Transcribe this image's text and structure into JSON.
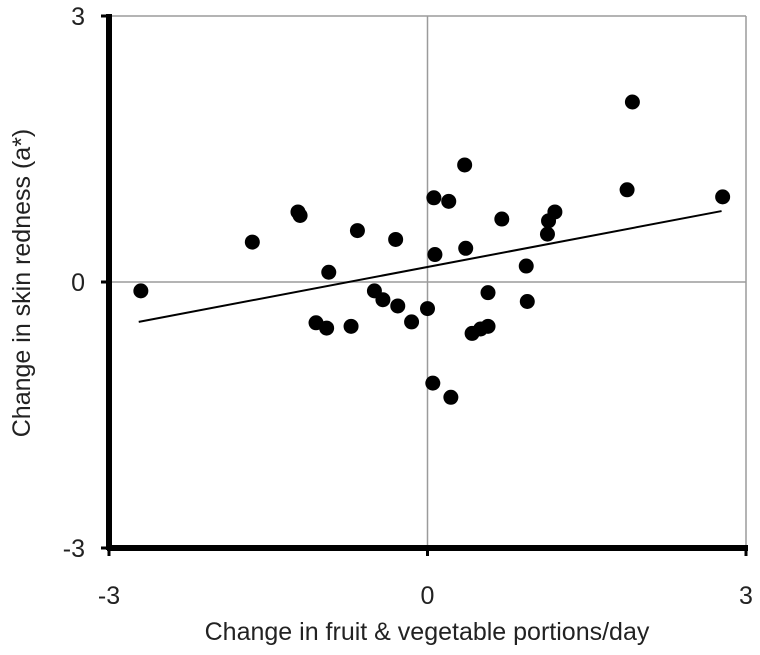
{
  "chart_data": {
    "type": "scatter",
    "xlabel": "Change in fruit & vegetable portions/day",
    "ylabel": "Change in skin redness (a*)",
    "xlim": [
      -3,
      3
    ],
    "ylim": [
      -3,
      3
    ],
    "x_ticks": [
      {
        "value": -3,
        "label": "-3"
      },
      {
        "value": 0,
        "label": "0"
      },
      {
        "value": 3,
        "label": "3"
      }
    ],
    "y_ticks": [
      {
        "value": -3,
        "label": "-3"
      },
      {
        "value": 0,
        "label": "0"
      },
      {
        "value": 3,
        "label": "3"
      }
    ],
    "grid": true,
    "marker_color": "#000000",
    "grid_color": "#9b9b9b",
    "trendline": {
      "x": [
        -2.72,
        2.77
      ],
      "y": [
        -0.45,
        0.8
      ]
    },
    "points": [
      {
        "x": -2.7,
        "y": -0.1
      },
      {
        "x": -1.65,
        "y": 0.45
      },
      {
        "x": -1.22,
        "y": 0.79
      },
      {
        "x": -1.2,
        "y": 0.75
      },
      {
        "x": -1.05,
        "y": -0.46
      },
      {
        "x": -0.95,
        "y": -0.52
      },
      {
        "x": -0.93,
        "y": 0.11
      },
      {
        "x": -0.72,
        "y": -0.5
      },
      {
        "x": -0.66,
        "y": 0.58
      },
      {
        "x": -0.5,
        "y": -0.1
      },
      {
        "x": -0.42,
        "y": -0.2
      },
      {
        "x": -0.3,
        "y": 0.48
      },
      {
        "x": -0.28,
        "y": -0.27
      },
      {
        "x": -0.15,
        "y": -0.45
      },
      {
        "x": 0.0,
        "y": -0.3
      },
      {
        "x": 0.06,
        "y": 0.95
      },
      {
        "x": 0.07,
        "y": 0.31
      },
      {
        "x": 0.05,
        "y": -1.14
      },
      {
        "x": 0.2,
        "y": 0.91
      },
      {
        "x": 0.22,
        "y": -1.3
      },
      {
        "x": 0.35,
        "y": 1.32
      },
      {
        "x": 0.36,
        "y": 0.38
      },
      {
        "x": 0.42,
        "y": -0.58
      },
      {
        "x": 0.5,
        "y": -0.53
      },
      {
        "x": 0.57,
        "y": -0.5
      },
      {
        "x": 0.57,
        "y": -0.12
      },
      {
        "x": 0.7,
        "y": 0.71
      },
      {
        "x": 0.93,
        "y": 0.18
      },
      {
        "x": 0.94,
        "y": -0.22
      },
      {
        "x": 1.13,
        "y": 0.54
      },
      {
        "x": 1.14,
        "y": 0.69
      },
      {
        "x": 1.2,
        "y": 0.79
      },
      {
        "x": 1.88,
        "y": 1.04
      },
      {
        "x": 1.93,
        "y": 2.03
      },
      {
        "x": 2.78,
        "y": 0.96
      }
    ]
  }
}
